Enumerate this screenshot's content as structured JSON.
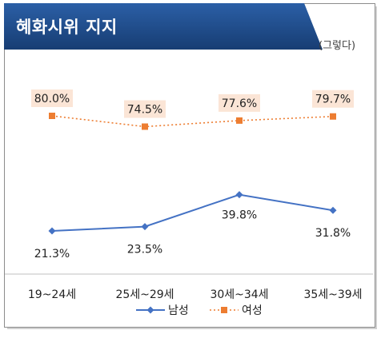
{
  "header": {
    "title": "혜화시위 지지",
    "subtitle": "(그렇다)"
  },
  "colors": {
    "title_bg": "#1f4e8c",
    "male_line": "#4472c4",
    "female_line": "#ed7d31",
    "female_label_bg": "#fbe5d6"
  },
  "chart_data": {
    "type": "line",
    "title": "혜화시위 지지",
    "subtitle": "(그렇다)",
    "categories": [
      "19~24세",
      "25세~29세",
      "30세~34세",
      "35세~39세"
    ],
    "series": [
      {
        "name": "남성",
        "values": [
          21.3,
          23.5,
          39.8,
          31.8
        ],
        "labels": [
          "21.3%",
          "23.5%",
          "39.8%",
          "31.8%"
        ],
        "color": "#4472c4",
        "marker": "diamond",
        "line_style": "solid"
      },
      {
        "name": "여성",
        "values": [
          80.0,
          74.5,
          77.6,
          79.7
        ],
        "labels": [
          "80.0%",
          "74.5%",
          "77.6%",
          "79.7%"
        ],
        "color": "#ed7d31",
        "marker": "square",
        "line_style": "dotted"
      }
    ],
    "ylim": [
      0,
      100
    ],
    "grid": false,
    "legend": "bottom"
  }
}
